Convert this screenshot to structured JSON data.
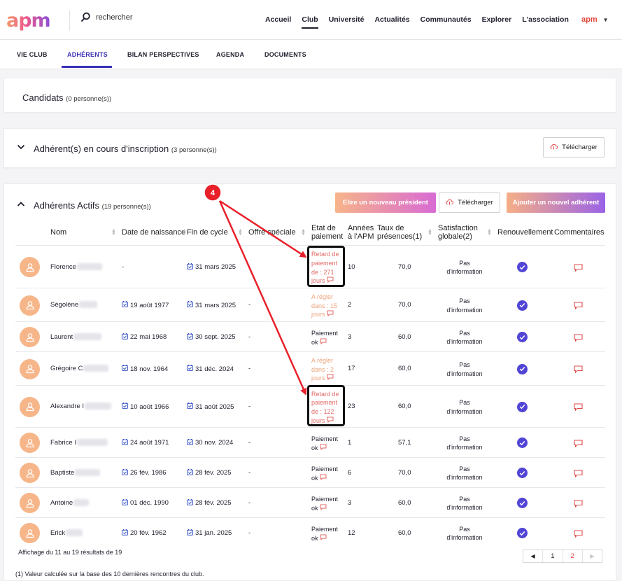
{
  "header": {
    "logo": "apm",
    "search_placeholder": "rechercher",
    "nav": [
      "Accueil",
      "Club",
      "Université",
      "Actualités",
      "Communautés",
      "Explorer",
      "L'association"
    ],
    "active_nav": "Club",
    "user_label": "apm"
  },
  "subnav": {
    "tabs": [
      "VIE CLUB",
      "ADHÉRENTS",
      "BILAN PERSPECTIVES",
      "AGENDA",
      "DOCUMENTS"
    ],
    "active": "ADHÉRENTS"
  },
  "candidats": {
    "title": "Candidats",
    "count": "(0 personne(s))"
  },
  "inscription": {
    "title": "Adhérent(s) en cours d'inscription",
    "count": "(3 personne(s))",
    "download_label": "Télécharger"
  },
  "actifs": {
    "title": "Adhérents Actifs",
    "count": "(19 personne(s))",
    "elect_label": "Elire un nouveau président",
    "download_label": "Télécharger",
    "add_label": "Ajouter un nouvel adhérent",
    "columns": [
      "Nom",
      "Date de naissance",
      "Fin de cycle",
      "Offre spéciale",
      "Etat de paiement",
      "Années à l'APM",
      "Taux de présences(1)",
      "Satisfaction globale(2)",
      "Renouvellement",
      "Commentaires"
    ],
    "rows": [
      {
        "name": "Florence",
        "birth": "-",
        "end": "31 mars 2025",
        "offer": "",
        "pay": [
          "Retard de",
          "paiement",
          "de : 271",
          "jours"
        ],
        "pay_status": "red",
        "years": "10",
        "rate": "70,0",
        "sat": [
          "Pas",
          "d'information"
        ]
      },
      {
        "name": "Ségolène",
        "birth": "19 août 1977",
        "end": "31 mars 2025",
        "offer": "-",
        "pay": [
          "A régler",
          "dans : 15",
          "jours"
        ],
        "pay_status": "orange",
        "years": "2",
        "rate": "70,0",
        "sat": [
          "Pas",
          "d'information"
        ]
      },
      {
        "name": "Laurent",
        "birth": "22 mai 1968",
        "end": "30 sept. 2025",
        "offer": "-",
        "pay": [
          "Paiement",
          "ok"
        ],
        "pay_status": "ok",
        "years": "3",
        "rate": "60,0",
        "sat": [
          "Pas",
          "d'information"
        ]
      },
      {
        "name": "Grégoire C",
        "birth": "18 nov. 1964",
        "end": "31 déc. 2024",
        "offer": "-",
        "pay": [
          "A régler",
          "dans : 2",
          "jours"
        ],
        "pay_status": "orange",
        "years": "17",
        "rate": "60,0",
        "sat": [
          "Pas",
          "d'information"
        ]
      },
      {
        "name": "Alexandre I",
        "birth": "10 août 1966",
        "end": "31 août 2025",
        "offer": "-",
        "pay": [
          "Retard de",
          "paiement",
          "de : 122",
          "jours"
        ],
        "pay_status": "red",
        "years": "23",
        "rate": "60,0",
        "sat": [
          "Pas",
          "d'information"
        ]
      },
      {
        "name": "Fabrice I",
        "birth": "24 août 1971",
        "end": "30 nov. 2024",
        "offer": "-",
        "pay": [
          "Paiement",
          "ok"
        ],
        "pay_status": "ok",
        "years": "1",
        "rate": "57,1",
        "sat": [
          "Pas",
          "d'information"
        ]
      },
      {
        "name": "Baptiste",
        "birth": "26 fév. 1986",
        "end": "28 fév. 2025",
        "offer": "-",
        "pay": [
          "Paiement",
          "ok"
        ],
        "pay_status": "ok",
        "years": "6",
        "rate": "70,0",
        "sat": [
          "Pas",
          "d'information"
        ]
      },
      {
        "name": "Antoine",
        "birth": "01 déc. 1990",
        "end": "28 fév. 2025",
        "offer": "-",
        "pay": [
          "Paiement",
          "ok"
        ],
        "pay_status": "ok",
        "years": "3",
        "rate": "60,0",
        "sat": [
          "Pas",
          "d'information"
        ]
      },
      {
        "name": "Erick",
        "birth": "20 fév. 1962",
        "end": "31 jan. 2025",
        "offer": "-",
        "pay": [
          "Paiement",
          "ok"
        ],
        "pay_status": "ok",
        "years": "12",
        "rate": "60,0",
        "sat": [
          "Pas",
          "d'information"
        ]
      }
    ],
    "results_text": "Affichage du 11 au 19 résultats de 19",
    "pager": {
      "prev": "◀",
      "pages": [
        "1",
        "2"
      ],
      "current": "2",
      "next": "▶"
    }
  },
  "footnote": "(1) Valeur calculée sur la base des 10 dernières rencontres du club.",
  "annotation": {
    "marker": "4"
  },
  "colors": {
    "accent": "#3a2fb5",
    "late": "#e36a66",
    "due": "#eca47c",
    "check": "#5145d6",
    "annotation": "#e8202a"
  }
}
